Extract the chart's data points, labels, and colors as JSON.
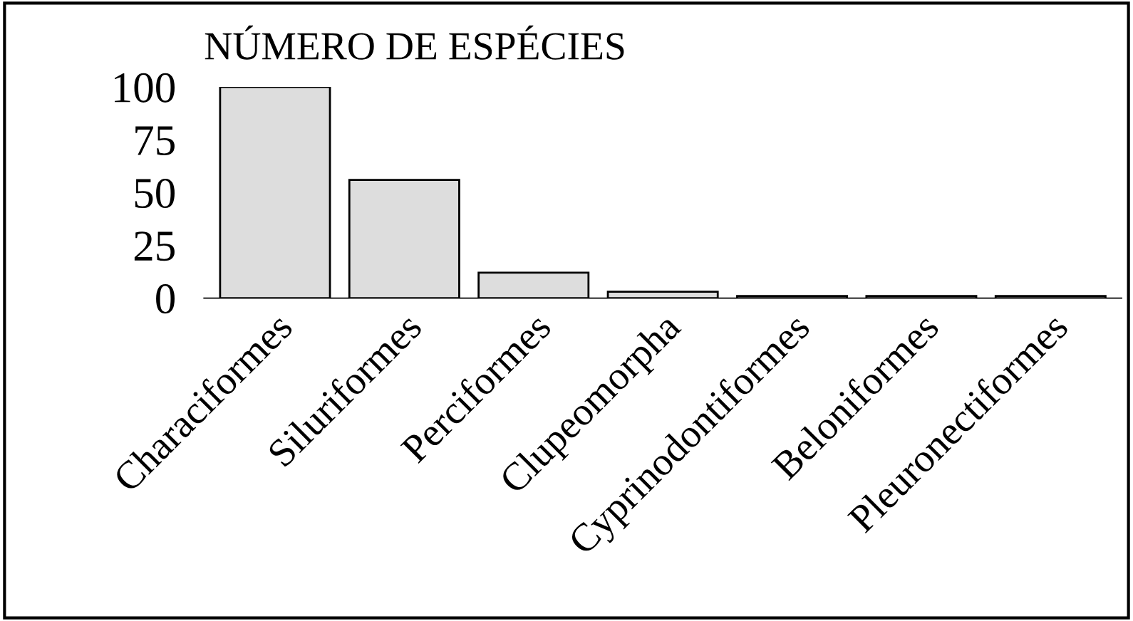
{
  "chart_data": {
    "type": "bar",
    "title": "NÚMERO DE ESPÉCIES",
    "categories": [
      "Characiformes",
      "Siluriformes",
      "Perciformes",
      "Clupeomorpha",
      "Cyprinodontiformes",
      "Beloniformes",
      "Pleuronectiformes"
    ],
    "values": [
      100,
      56,
      12,
      3,
      1,
      1,
      1
    ],
    "color": "#dddddd",
    "ylim": [
      0,
      100
    ],
    "yticks": [
      0,
      25,
      50,
      75,
      100
    ],
    "grid": false,
    "legend": false
  }
}
